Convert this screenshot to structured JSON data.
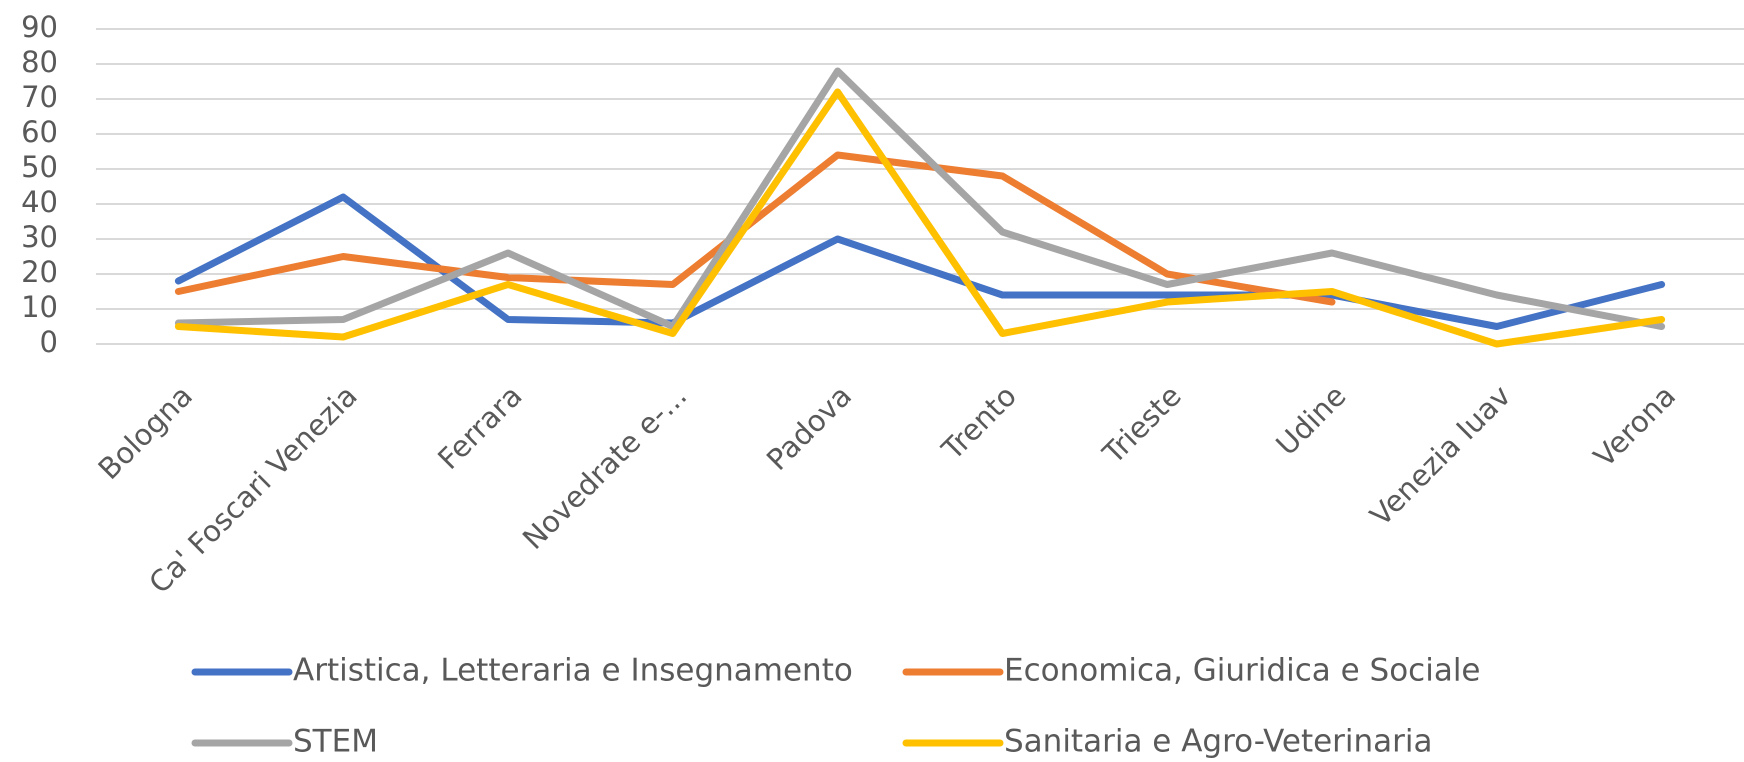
{
  "chart_data": {
    "type": "line",
    "categories": [
      "Bologna",
      "Ca' Foscari Venezia",
      "Ferrara",
      "Novedrate e-...",
      "Padova",
      "Trento",
      "Trieste",
      "Udine",
      "Venezia Iuav",
      "Verona"
    ],
    "series": [
      {
        "name": "Artistica, Letteraria e Insegnamento",
        "color": "#4472c4",
        "values": [
          18,
          42,
          7,
          6,
          30,
          14,
          14,
          14,
          5,
          17
        ]
      },
      {
        "name": "Economica, Giuridica e Sociale",
        "color": "#ed7d31",
        "values": [
          15,
          25,
          19,
          17,
          54,
          48,
          20,
          12,
          null,
          null
        ]
      },
      {
        "name": "STEM",
        "color": "#a5a5a5",
        "values": [
          6,
          7,
          26,
          5,
          78,
          32,
          17,
          26,
          14,
          5
        ]
      },
      {
        "name": "Sanitaria e Agro-Veterinaria",
        "color": "#ffc000",
        "values": [
          5,
          2,
          17,
          3,
          72,
          3,
          12,
          15,
          0,
          7
        ]
      }
    ],
    "ylim": [
      0,
      90
    ],
    "yticks": [
      0,
      10,
      20,
      30,
      40,
      50,
      60,
      70,
      80,
      90
    ],
    "grid": true,
    "legend": "bottom"
  }
}
